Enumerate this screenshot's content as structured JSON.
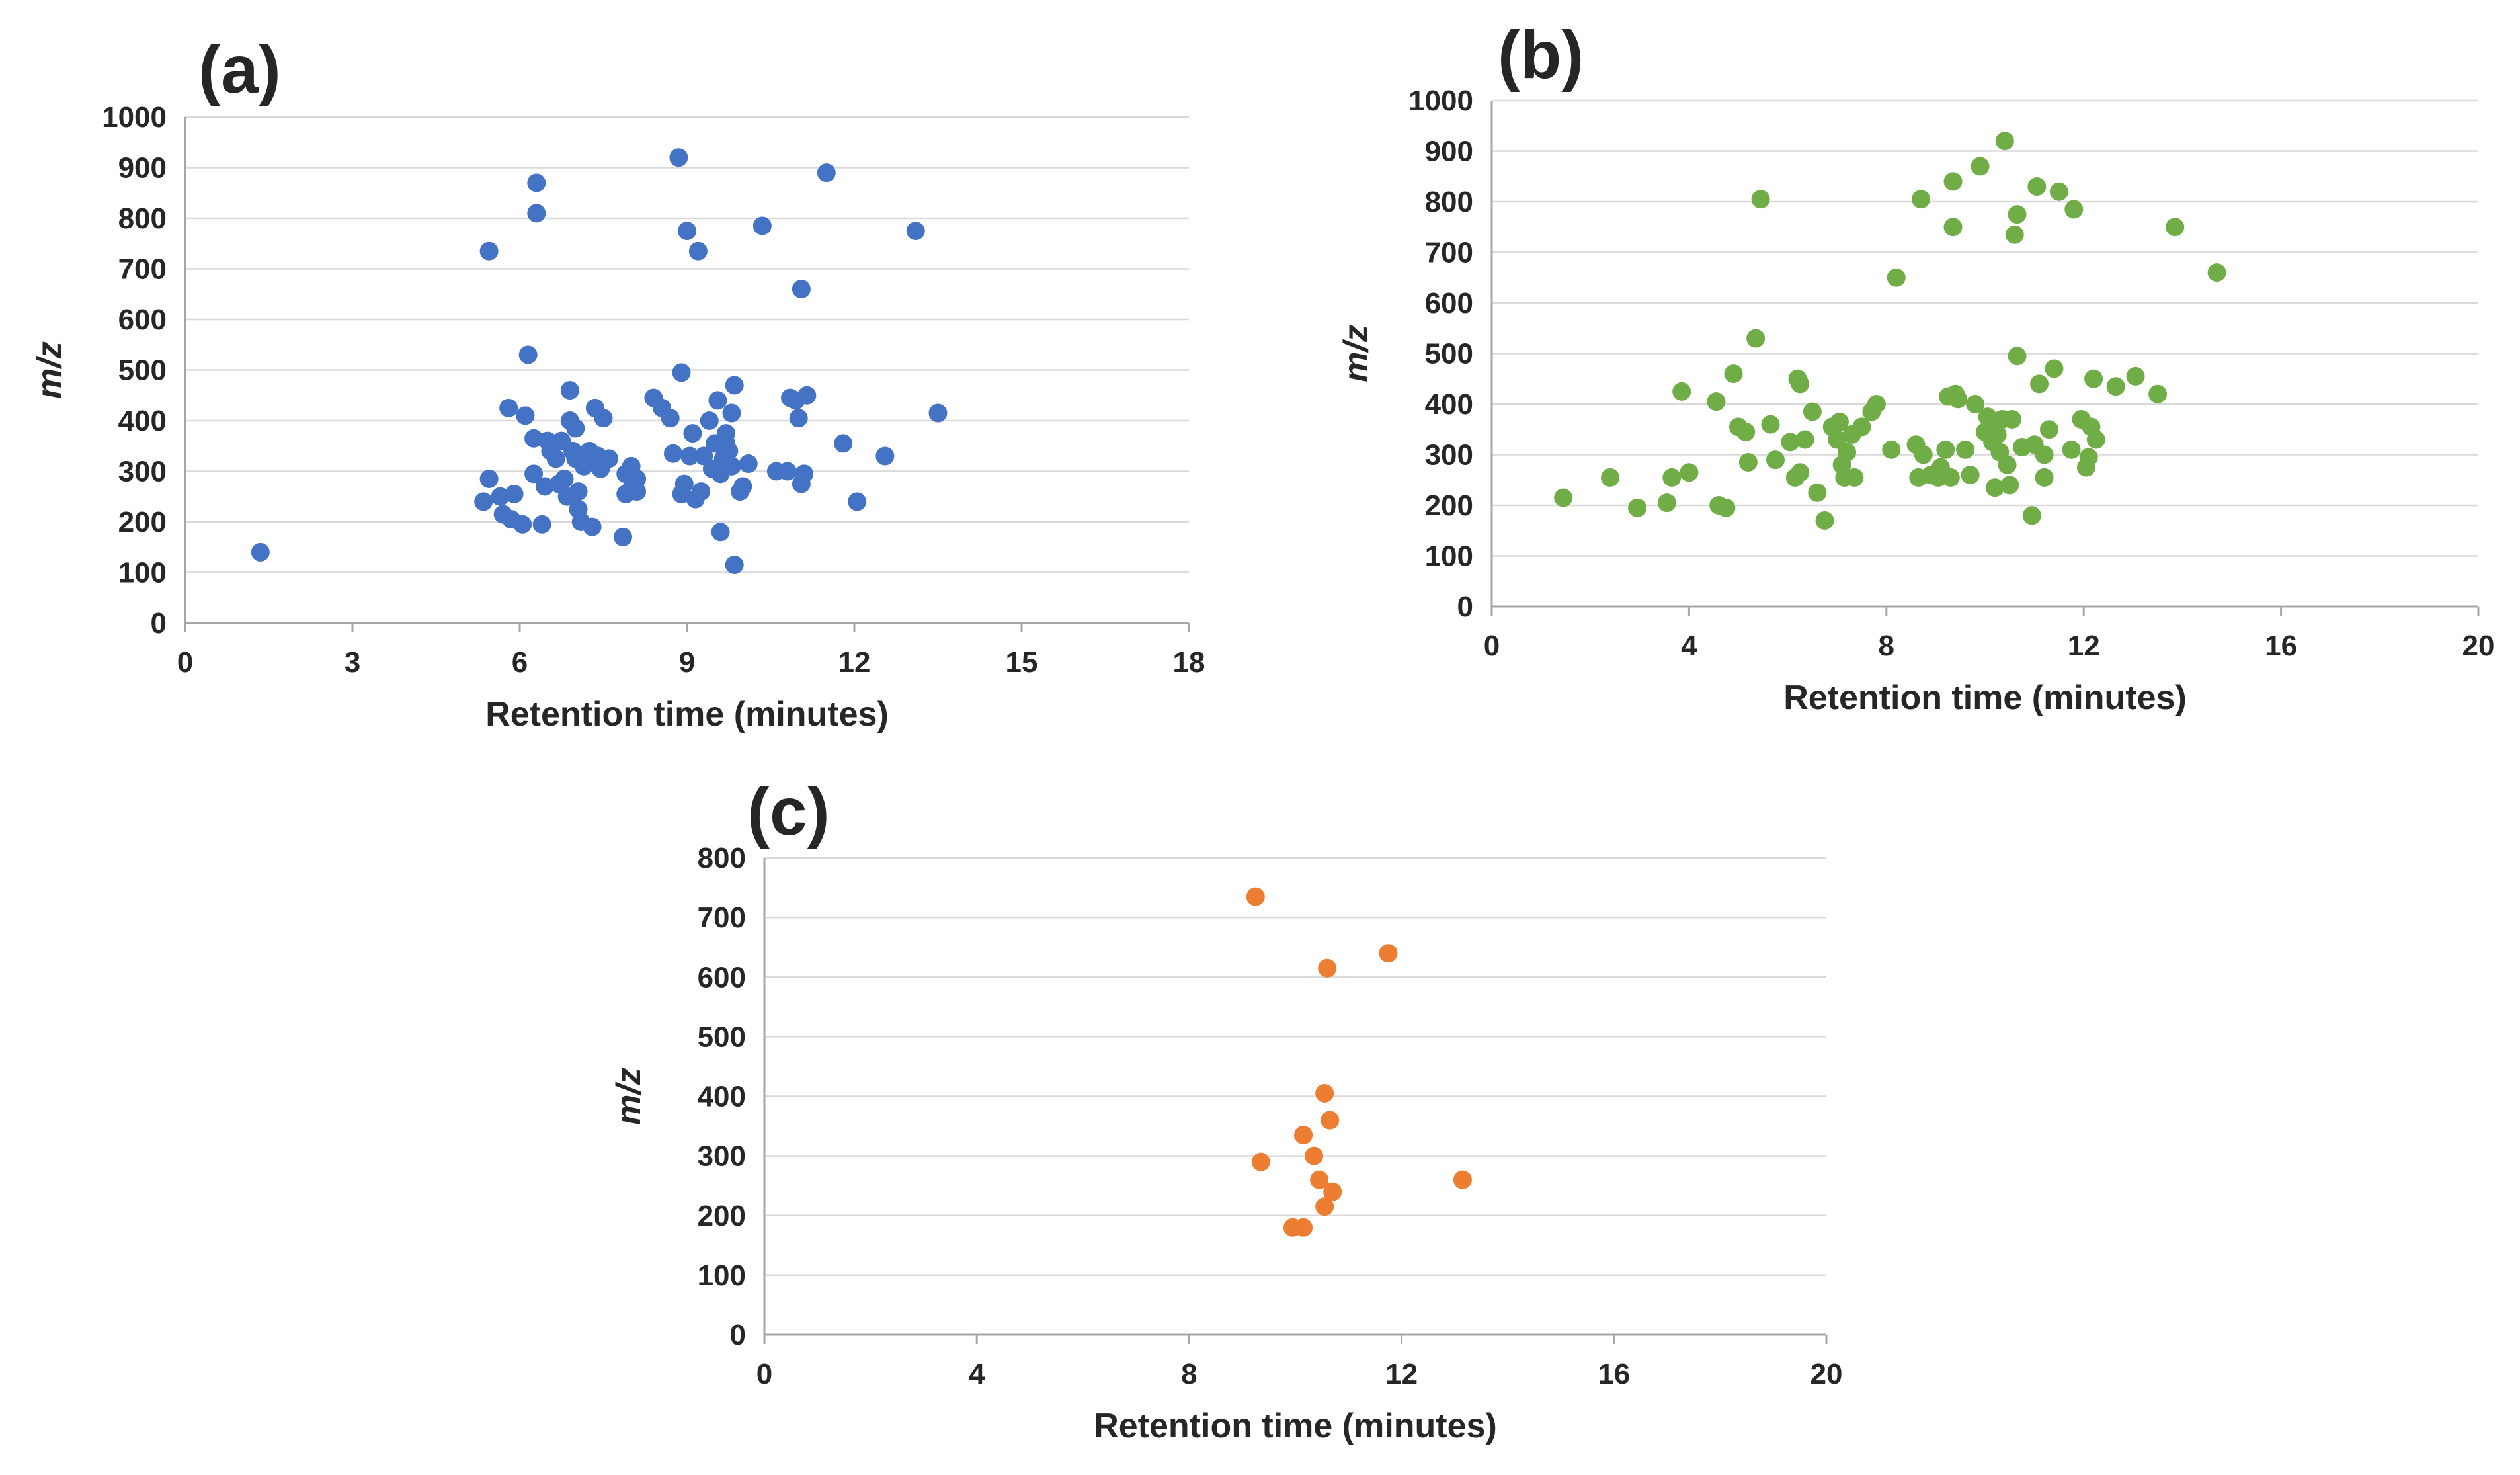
{
  "chart_data": [
    {
      "type": "scatter",
      "panel_label": "(a)",
      "xlabel": "Retention time (minutes)",
      "ylabel": "m/z",
      "xlim": [
        0,
        18
      ],
      "ylim": [
        0,
        1000
      ],
      "xticks": [
        0,
        3,
        6,
        9,
        12,
        15,
        18
      ],
      "yticks": [
        0,
        100,
        200,
        300,
        400,
        500,
        600,
        700,
        800,
        900,
        1000
      ],
      "color": "#4472c4",
      "points": [
        [
          1.35,
          140
        ],
        [
          5.35,
          240
        ],
        [
          5.45,
          285
        ],
        [
          5.45,
          735
        ],
        [
          5.65,
          250
        ],
        [
          5.7,
          215
        ],
        [
          5.8,
          425
        ],
        [
          5.85,
          205
        ],
        [
          5.9,
          255
        ],
        [
          6.05,
          195
        ],
        [
          6.1,
          410
        ],
        [
          6.15,
          530
        ],
        [
          6.25,
          365
        ],
        [
          6.25,
          295
        ],
        [
          6.3,
          870
        ],
        [
          6.3,
          810
        ],
        [
          6.4,
          195
        ],
        [
          6.45,
          270
        ],
        [
          6.5,
          360
        ],
        [
          6.55,
          340
        ],
        [
          6.6,
          355
        ],
        [
          6.65,
          325
        ],
        [
          6.7,
          275
        ],
        [
          6.75,
          360
        ],
        [
          6.8,
          285
        ],
        [
          6.85,
          250
        ],
        [
          6.9,
          400
        ],
        [
          6.9,
          460
        ],
        [
          6.95,
          340
        ],
        [
          7.0,
          385
        ],
        [
          7.0,
          325
        ],
        [
          7.05,
          260
        ],
        [
          7.05,
          225
        ],
        [
          7.1,
          200
        ],
        [
          7.15,
          310
        ],
        [
          7.2,
          335
        ],
        [
          7.25,
          340
        ],
        [
          7.3,
          190
        ],
        [
          7.35,
          425
        ],
        [
          7.4,
          330
        ],
        [
          7.45,
          305
        ],
        [
          7.5,
          405
        ],
        [
          7.6,
          325
        ],
        [
          7.85,
          170
        ],
        [
          7.9,
          295
        ],
        [
          7.9,
          255
        ],
        [
          8.0,
          310
        ],
        [
          8.0,
          265
        ],
        [
          8.1,
          285
        ],
        [
          8.1,
          260
        ],
        [
          8.4,
          445
        ],
        [
          8.55,
          425
        ],
        [
          8.7,
          405
        ],
        [
          8.75,
          335
        ],
        [
          8.85,
          920
        ],
        [
          8.9,
          495
        ],
        [
          8.9,
          255
        ],
        [
          8.95,
          275
        ],
        [
          9.0,
          775
        ],
        [
          9.05,
          330
        ],
        [
          9.1,
          375
        ],
        [
          9.15,
          245
        ],
        [
          9.2,
          735
        ],
        [
          9.25,
          260
        ],
        [
          9.3,
          330
        ],
        [
          9.4,
          400
        ],
        [
          9.45,
          305
        ],
        [
          9.5,
          355
        ],
        [
          9.55,
          440
        ],
        [
          9.6,
          295
        ],
        [
          9.6,
          180
        ],
        [
          9.65,
          325
        ],
        [
          9.7,
          375
        ],
        [
          9.7,
          355
        ],
        [
          9.75,
          340
        ],
        [
          9.8,
          415
        ],
        [
          9.8,
          310
        ],
        [
          9.85,
          470
        ],
        [
          9.85,
          115
        ],
        [
          9.95,
          260
        ],
        [
          10.0,
          270
        ],
        [
          10.1,
          315
        ],
        [
          10.35,
          785
        ],
        [
          10.6,
          300
        ],
        [
          10.8,
          300
        ],
        [
          10.85,
          445
        ],
        [
          10.95,
          440
        ],
        [
          11.0,
          405
        ],
        [
          11.05,
          660
        ],
        [
          11.05,
          275
        ],
        [
          11.1,
          295
        ],
        [
          11.15,
          450
        ],
        [
          11.5,
          890
        ],
        [
          11.8,
          355
        ],
        [
          12.05,
          240
        ],
        [
          12.55,
          330
        ],
        [
          13.1,
          775
        ],
        [
          13.5,
          415
        ]
      ]
    },
    {
      "type": "scatter",
      "panel_label": "(b)",
      "xlabel": "Retention time (minutes)",
      "ylabel": "m/z",
      "xlim": [
        0,
        20
      ],
      "ylim": [
        0,
        1000
      ],
      "xticks": [
        0,
        4,
        8,
        12,
        16,
        20
      ],
      "yticks": [
        0,
        100,
        200,
        300,
        400,
        500,
        600,
        700,
        800,
        900,
        1000
      ],
      "color": "#70ad47",
      "points": [
        [
          1.45,
          215
        ],
        [
          2.4,
          255
        ],
        [
          2.95,
          195
        ],
        [
          3.55,
          205
        ],
        [
          3.65,
          255
        ],
        [
          3.85,
          425
        ],
        [
          4.0,
          265
        ],
        [
          4.55,
          405
        ],
        [
          4.6,
          200
        ],
        [
          4.75,
          195
        ],
        [
          4.9,
          460
        ],
        [
          5.0,
          355
        ],
        [
          5.15,
          345
        ],
        [
          5.2,
          285
        ],
        [
          5.35,
          530
        ],
        [
          5.45,
          805
        ],
        [
          5.65,
          360
        ],
        [
          5.75,
          290
        ],
        [
          6.05,
          325
        ],
        [
          6.15,
          255
        ],
        [
          6.2,
          450
        ],
        [
          6.25,
          440
        ],
        [
          6.25,
          265
        ],
        [
          6.35,
          330
        ],
        [
          6.5,
          385
        ],
        [
          6.6,
          225
        ],
        [
          6.75,
          170
        ],
        [
          6.9,
          355
        ],
        [
          7.0,
          330
        ],
        [
          7.05,
          365
        ],
        [
          7.1,
          280
        ],
        [
          7.15,
          255
        ],
        [
          7.2,
          305
        ],
        [
          7.3,
          340
        ],
        [
          7.35,
          255
        ],
        [
          7.5,
          355
        ],
        [
          7.7,
          385
        ],
        [
          7.8,
          400
        ],
        [
          8.1,
          310
        ],
        [
          8.2,
          650
        ],
        [
          8.6,
          320
        ],
        [
          8.65,
          255
        ],
        [
          8.7,
          805
        ],
        [
          8.75,
          300
        ],
        [
          8.9,
          260
        ],
        [
          9.05,
          255
        ],
        [
          9.1,
          275
        ],
        [
          9.2,
          310
        ],
        [
          9.25,
          415
        ],
        [
          9.3,
          255
        ],
        [
          9.35,
          840
        ],
        [
          9.35,
          750
        ],
        [
          9.4,
          420
        ],
        [
          9.45,
          410
        ],
        [
          9.6,
          310
        ],
        [
          9.7,
          260
        ],
        [
          9.8,
          400
        ],
        [
          9.9,
          870
        ],
        [
          10.0,
          345
        ],
        [
          10.05,
          375
        ],
        [
          10.1,
          355
        ],
        [
          10.15,
          325
        ],
        [
          10.2,
          235
        ],
        [
          10.25,
          340
        ],
        [
          10.3,
          305
        ],
        [
          10.35,
          370
        ],
        [
          10.4,
          920
        ],
        [
          10.45,
          280
        ],
        [
          10.5,
          240
        ],
        [
          10.55,
          370
        ],
        [
          10.6,
          735
        ],
        [
          10.65,
          775
        ],
        [
          10.65,
          495
        ],
        [
          10.75,
          315
        ],
        [
          10.95,
          180
        ],
        [
          11.0,
          320
        ],
        [
          11.05,
          830
        ],
        [
          11.1,
          440
        ],
        [
          11.2,
          300
        ],
        [
          11.2,
          255
        ],
        [
          11.3,
          350
        ],
        [
          11.4,
          470
        ],
        [
          11.5,
          820
        ],
        [
          11.75,
          310
        ],
        [
          11.8,
          785
        ],
        [
          11.95,
          370
        ],
        [
          12.05,
          275
        ],
        [
          12.1,
          295
        ],
        [
          12.15,
          355
        ],
        [
          12.2,
          450
        ],
        [
          12.25,
          330
        ],
        [
          12.65,
          435
        ],
        [
          13.05,
          455
        ],
        [
          13.5,
          420
        ],
        [
          13.85,
          750
        ],
        [
          14.7,
          660
        ]
      ]
    },
    {
      "type": "scatter",
      "panel_label": "(c)",
      "xlabel": "Retention time (minutes)",
      "ylabel": "m/z",
      "xlim": [
        0,
        20
      ],
      "ylim": [
        0,
        800
      ],
      "xticks": [
        0,
        4,
        8,
        12,
        16,
        20
      ],
      "yticks": [
        0,
        100,
        200,
        300,
        400,
        500,
        600,
        700,
        800
      ],
      "color": "#ed7d31",
      "points": [
        [
          9.25,
          735
        ],
        [
          9.35,
          290
        ],
        [
          9.95,
          180
        ],
        [
          10.15,
          180
        ],
        [
          10.15,
          335
        ],
        [
          10.35,
          300
        ],
        [
          10.45,
          260
        ],
        [
          10.55,
          405
        ],
        [
          10.55,
          215
        ],
        [
          10.6,
          615
        ],
        [
          10.65,
          360
        ],
        [
          10.7,
          240
        ],
        [
          11.75,
          640
        ],
        [
          13.15,
          260
        ]
      ]
    }
  ]
}
